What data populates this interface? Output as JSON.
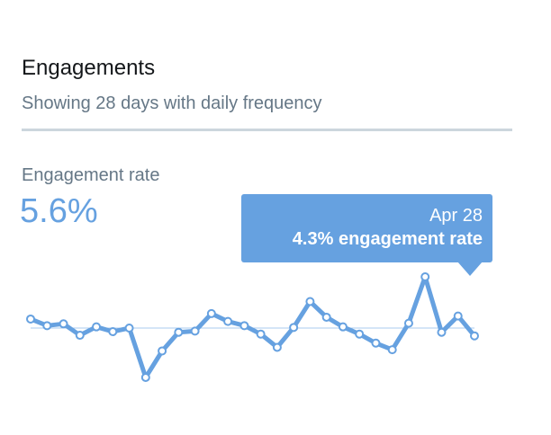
{
  "header": {
    "title": "Engagements",
    "subtitle": "Showing 28 days with daily frequency"
  },
  "metric": {
    "label": "Engagement rate",
    "value": "5.6%"
  },
  "tooltip": {
    "date": "Apr 28",
    "value_text": "4.3% engagement rate"
  },
  "colors": {
    "accent": "#66a1e0",
    "baseline": "#a9cbef",
    "divider": "#ccd6dd",
    "muted_text": "#657786"
  },
  "chart_data": {
    "type": "line",
    "title": "",
    "xlabel": "",
    "ylabel": "",
    "grid": false,
    "legend": "none",
    "x": [
      1,
      2,
      3,
      4,
      5,
      6,
      7,
      8,
      9,
      10,
      11,
      12,
      13,
      14,
      15,
      16,
      17,
      18,
      19,
      20,
      21,
      22,
      23,
      24,
      25,
      26,
      27,
      28
    ],
    "series": [
      {
        "values": [
          7.1,
          6.0,
          6.3,
          4.4,
          5.8,
          5.0,
          5.6,
          -2.6,
          1.8,
          4.9,
          5.1,
          8.0,
          6.7,
          6.0,
          4.6,
          2.4,
          5.7,
          10.0,
          7.4,
          5.8,
          4.6,
          3.1,
          2.0,
          6.4,
          14.1,
          4.9,
          7.6,
          4.3
        ]
      }
    ],
    "baseline": 5.6,
    "highlight_index": 27
  }
}
